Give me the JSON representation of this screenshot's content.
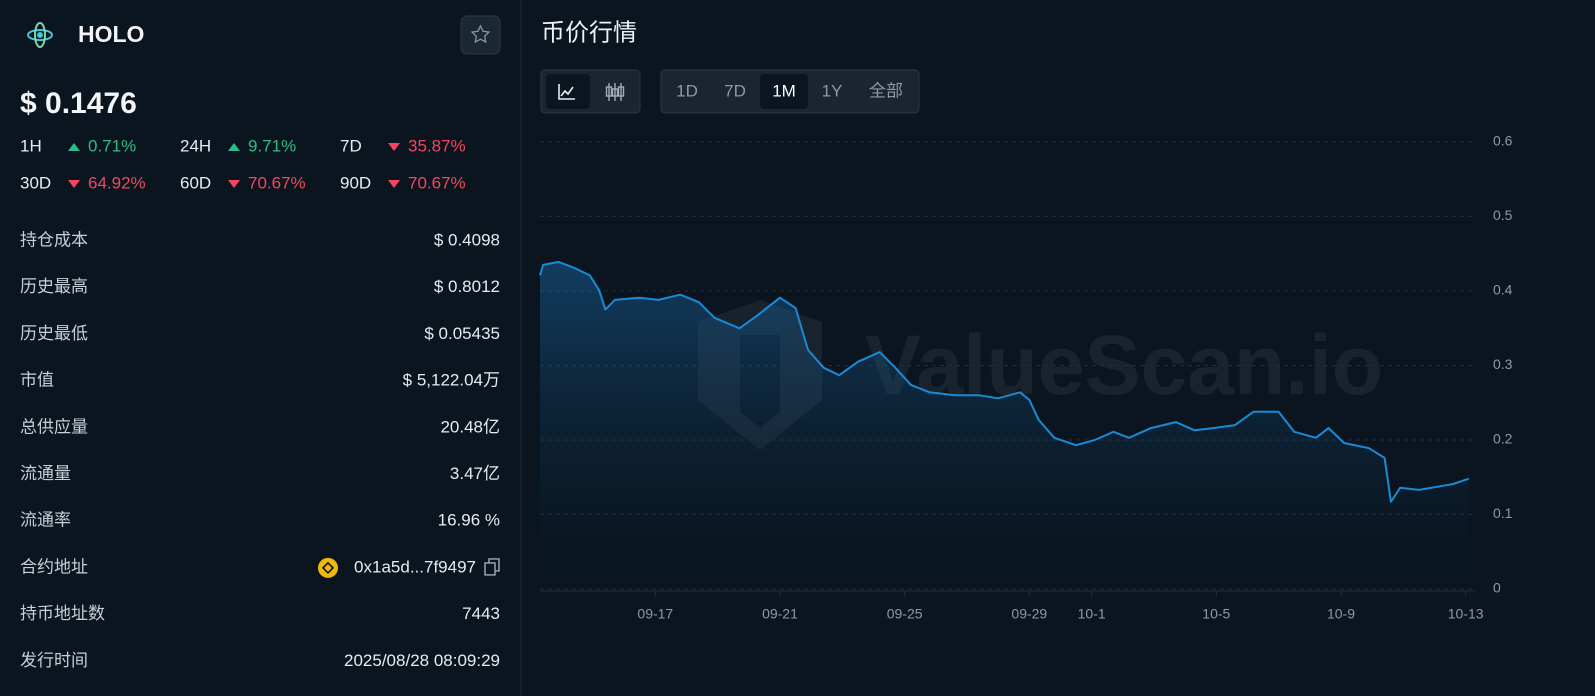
{
  "header": {
    "name": "HOLO",
    "price": "$ 0.1476"
  },
  "changes": [
    {
      "period": "1H",
      "value": "0.71%",
      "direction": "up"
    },
    {
      "period": "24H",
      "value": "9.71%",
      "direction": "up"
    },
    {
      "period": "7D",
      "value": "35.87%",
      "direction": "down"
    },
    {
      "period": "30D",
      "value": "64.92%",
      "direction": "down"
    },
    {
      "period": "60D",
      "value": "70.67%",
      "direction": "down"
    },
    {
      "period": "90D",
      "value": "70.67%",
      "direction": "down"
    }
  ],
  "info": [
    {
      "label": "持仓成本",
      "value": "$ 0.4098"
    },
    {
      "label": "历史最高",
      "value": "$ 0.8012"
    },
    {
      "label": "历史最低",
      "value": "$ 0.05435"
    },
    {
      "label": "市值",
      "value": "$ 5,122.04万"
    },
    {
      "label": "总供应量",
      "value": "20.48亿"
    },
    {
      "label": "流通量",
      "value": "3.47亿"
    },
    {
      "label": "流通率",
      "value": "16.96 %"
    },
    {
      "label": "合约地址",
      "value": "0x1a5d...7f9497"
    },
    {
      "label": "持币地址数",
      "value": "7443"
    },
    {
      "label": "发行时间",
      "value": "2025/08/28 08:09:29"
    }
  ],
  "chart_data": {
    "type": "line",
    "title": "币价行情",
    "ranges": [
      "1D",
      "7D",
      "1M",
      "1Y",
      "全部"
    ],
    "active_range": "1M",
    "watermark": "ValueScan.io",
    "x": [
      256.3,
      256.4,
      256.9,
      257.4,
      257.9,
      258.2,
      258.4,
      258.7,
      259.5,
      260.1,
      260.8,
      261.4,
      261.9,
      262.7,
      263.3,
      264.0,
      264.5,
      264.9,
      265.4,
      265.9,
      266.5,
      267.2,
      267.7,
      268.2,
      268.8,
      269.6,
      270.4,
      271.0,
      271.7,
      272.0,
      272.3,
      272.8,
      273.5,
      274.1,
      274.7,
      275.2,
      275.9,
      276.7,
      277.3,
      277.9,
      278.6,
      279.2,
      280.0,
      280.5,
      281.2,
      281.6,
      282.1,
      282.9,
      283.4,
      283.6,
      283.9,
      284.5,
      285.2,
      285.6,
      286.1
    ],
    "series": [
      {
        "color": "#1b8ad6",
        "values": [
          0.421,
          0.435,
          0.439,
          0.431,
          0.421,
          0.401,
          0.375,
          0.388,
          0.391,
          0.388,
          0.395,
          0.385,
          0.364,
          0.35,
          0.368,
          0.391,
          0.377,
          0.321,
          0.297,
          0.287,
          0.305,
          0.318,
          0.297,
          0.274,
          0.264,
          0.26,
          0.26,
          0.256,
          0.264,
          0.254,
          0.227,
          0.203,
          0.193,
          0.2,
          0.211,
          0.203,
          0.216,
          0.224,
          0.213,
          0.216,
          0.22,
          0.238,
          0.238,
          0.211,
          0.203,
          0.216,
          0.196,
          0.189,
          0.176,
          0.117,
          0.136,
          0.133,
          0.138,
          0.141,
          0.148
        ]
      }
    ],
    "xlim": [
      256.3,
      286.3
    ],
    "xticks": [
      {
        "value": 260,
        "label": "09-17"
      },
      {
        "value": 264,
        "label": "09-21"
      },
      {
        "value": 268,
        "label": "09-25"
      },
      {
        "value": 272,
        "label": "09-29"
      },
      {
        "value": 274,
        "label": "10-1"
      },
      {
        "value": 278,
        "label": "10-5"
      },
      {
        "value": 282,
        "label": "10-9"
      },
      {
        "value": 286,
        "label": "10-13"
      }
    ],
    "ylim": [
      0,
      0.6
    ],
    "yticks": [
      0,
      0.1,
      0.2,
      0.3,
      0.4,
      0.5,
      0.6
    ],
    "grid": true
  }
}
